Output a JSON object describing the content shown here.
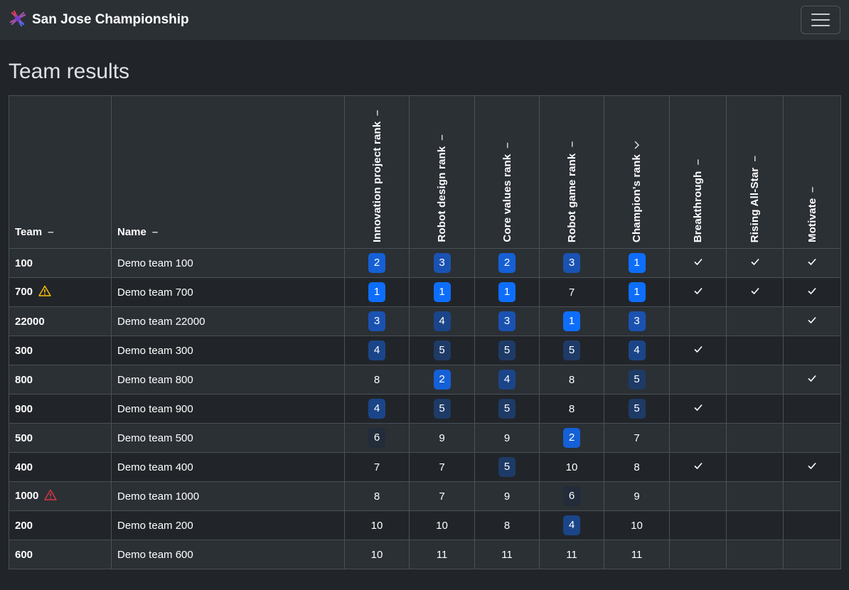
{
  "app": {
    "title": "San Jose Championship",
    "logo_icon": "star-burst-logo-icon",
    "menu_icon": "hamburger-menu-icon"
  },
  "page": {
    "heading": "Team results"
  },
  "columns": {
    "team": "Team",
    "name": "Name",
    "innovation": "Innovation project rank",
    "design": "Robot design rank",
    "core": "Core values rank",
    "game": "Robot game rank",
    "champion": "Champion's rank",
    "breakthrough": "Breakthrough",
    "rising": "Rising All-Star",
    "motivate": "Motivate"
  },
  "sort_indicators": {
    "unsorted": "–",
    "ascending_icon": "chevron-up-icon"
  },
  "rank_colors": {
    "1": "#0d6efd",
    "2": "#1560d6",
    "3": "#1a52b1",
    "4": "#1b4589",
    "5": "#1e3a66",
    "6": "#222c3b"
  },
  "warning_colors": {
    "warning": "#ffc107",
    "danger": "#dc3545"
  },
  "rows": [
    {
      "team": "100",
      "name": "Demo team 100",
      "innovation": 2,
      "design": 3,
      "core": 2,
      "game": 3,
      "champion": 1,
      "breakthrough": true,
      "rising": true,
      "motivate": true,
      "warning": null
    },
    {
      "team": "700",
      "name": "Demo team 700",
      "innovation": 1,
      "design": 1,
      "core": 1,
      "game": 7,
      "champion": 1,
      "breakthrough": true,
      "rising": true,
      "motivate": true,
      "warning": "warning"
    },
    {
      "team": "22000",
      "name": "Demo team 22000",
      "innovation": 3,
      "design": 4,
      "core": 3,
      "game": 1,
      "champion": 3,
      "breakthrough": false,
      "rising": false,
      "motivate": true,
      "warning": null
    },
    {
      "team": "300",
      "name": "Demo team 300",
      "innovation": 4,
      "design": 5,
      "core": 5,
      "game": 5,
      "champion": 4,
      "breakthrough": true,
      "rising": false,
      "motivate": false,
      "warning": null
    },
    {
      "team": "800",
      "name": "Demo team 800",
      "innovation": 8,
      "design": 2,
      "core": 4,
      "game": 8,
      "champion": 5,
      "breakthrough": false,
      "rising": false,
      "motivate": true,
      "warning": null
    },
    {
      "team": "900",
      "name": "Demo team 900",
      "innovation": 4,
      "design": 5,
      "core": 5,
      "game": 8,
      "champion": 5,
      "breakthrough": true,
      "rising": false,
      "motivate": false,
      "warning": null
    },
    {
      "team": "500",
      "name": "Demo team 500",
      "innovation": 6,
      "design": 9,
      "core": 9,
      "game": 2,
      "champion": 7,
      "breakthrough": false,
      "rising": false,
      "motivate": false,
      "warning": null
    },
    {
      "team": "400",
      "name": "Demo team 400",
      "innovation": 7,
      "design": 7,
      "core": 5,
      "game": 10,
      "champion": 8,
      "breakthrough": true,
      "rising": false,
      "motivate": true,
      "warning": null
    },
    {
      "team": "1000",
      "name": "Demo team 1000",
      "innovation": 8,
      "design": 7,
      "core": 9,
      "game": 6,
      "champion": 9,
      "breakthrough": false,
      "rising": false,
      "motivate": false,
      "warning": "danger"
    },
    {
      "team": "200",
      "name": "Demo team 200",
      "innovation": 10,
      "design": 10,
      "core": 8,
      "game": 4,
      "champion": 10,
      "breakthrough": false,
      "rising": false,
      "motivate": false,
      "warning": null
    },
    {
      "team": "600",
      "name": "Demo team 600",
      "innovation": 10,
      "design": 11,
      "core": 11,
      "game": 11,
      "champion": 11,
      "breakthrough": false,
      "rising": false,
      "motivate": false,
      "warning": null
    }
  ]
}
